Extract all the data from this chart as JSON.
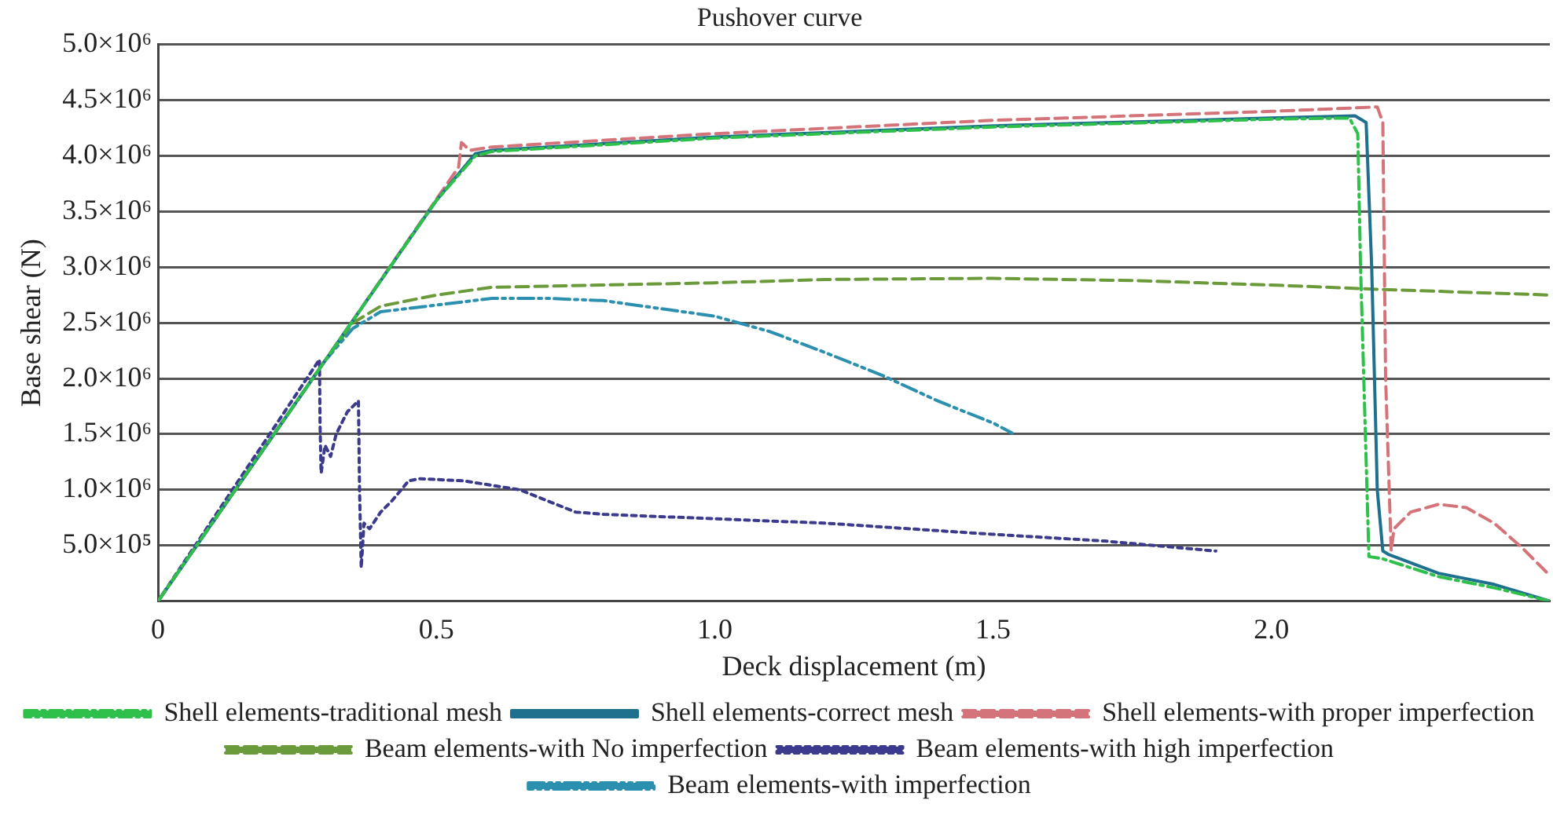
{
  "chart_data": {
    "type": "line",
    "title": "Pushover curve",
    "xlabel": "Deck displacement (m)",
    "ylabel": "Base shear (N)",
    "xlim": [
      0,
      2.5
    ],
    "xticks": [
      0,
      0.5,
      {
        "value": 1,
        "label": "1.0"
      },
      1.5,
      {
        "value": 2,
        "label": "2.0"
      }
    ],
    "ylim": [
      0,
      5000000
    ],
    "yticks": [
      {
        "value": 0,
        "label": null
      },
      {
        "value": 500000,
        "label": "5.0×10⁵"
      },
      {
        "value": 1000000,
        "label": "1.0×10⁶"
      },
      {
        "value": 1500000,
        "label": "1.5×10⁶"
      },
      {
        "value": 2000000,
        "label": "2.0×10⁶"
      },
      {
        "value": 2500000,
        "label": "2.5×10⁶"
      },
      {
        "value": 3000000,
        "label": "3.0×10⁶"
      },
      {
        "value": 3500000,
        "label": "3.5×10⁶"
      },
      {
        "value": 4000000,
        "label": "4.0×10⁶"
      },
      {
        "value": 4500000,
        "label": "4.5×10⁶"
      },
      {
        "value": 5000000,
        "label": "5.0×10⁶"
      }
    ],
    "grid": "y",
    "legend": "bottom",
    "marker": "none",
    "series": [
      {
        "name": "Shell elements-traditional mesh",
        "color": "#2ec04a",
        "line_style": "dashdot",
        "x": [
          0,
          0.3,
          0.5,
          0.57,
          0.6,
          1.0,
          1.5,
          2.0,
          2.14,
          2.155,
          2.16,
          2.175,
          2.2,
          2.3,
          2.4,
          2.5
        ],
        "values": [
          0,
          2160000,
          3600000,
          4000000,
          4040000,
          4160000,
          4260000,
          4330000,
          4340000,
          4200000,
          3000000,
          400000,
          380000,
          220000,
          120000,
          0
        ]
      },
      {
        "name": "Shell elements-correct mesh",
        "color": "#1f6f8f",
        "line_style": "solid",
        "x": [
          0,
          0.3,
          0.5,
          0.57,
          0.6,
          1.0,
          1.5,
          2.0,
          2.15,
          2.17,
          2.18,
          2.19,
          2.2,
          2.21,
          2.3,
          2.4,
          2.5
        ],
        "values": [
          0,
          2160000,
          3600000,
          4020000,
          4050000,
          4170000,
          4270000,
          4340000,
          4360000,
          4300000,
          3000000,
          1000000,
          450000,
          420000,
          250000,
          150000,
          0
        ]
      },
      {
        "name": "Shell elements-with proper imperfection",
        "color": "#d4737a",
        "line_style": "dashed",
        "x": [
          0,
          0.3,
          0.54,
          0.545,
          0.56,
          0.6,
          1.0,
          1.5,
          2.0,
          2.19,
          2.2,
          2.205,
          2.215,
          2.22,
          2.25,
          2.3,
          2.35,
          2.4,
          2.45,
          2.5
        ],
        "values": [
          0,
          2160000,
          3900000,
          4120000,
          4050000,
          4080000,
          4200000,
          4320000,
          4400000,
          4440000,
          4300000,
          2000000,
          450000,
          650000,
          800000,
          870000,
          840000,
          700000,
          480000,
          230000
        ]
      },
      {
        "name": "Beam elements-with No imperfection",
        "color": "#6b9a3a",
        "line_style": "dashed",
        "x": [
          0,
          0.3,
          0.35,
          0.4,
          0.5,
          0.6,
          0.8,
          1.0,
          1.2,
          1.5,
          1.75,
          2.0,
          2.2,
          2.5
        ],
        "values": [
          0,
          2160000,
          2500000,
          2650000,
          2750000,
          2820000,
          2840000,
          2860000,
          2890000,
          2900000,
          2880000,
          2840000,
          2800000,
          2750000
        ]
      },
      {
        "name": "Beam elements-with high imperfection",
        "color": "#3b3a8c",
        "line_style": "dotted",
        "x": [
          0,
          0.29,
          0.291,
          0.293,
          0.3,
          0.31,
          0.32,
          0.34,
          0.36,
          0.362,
          0.365,
          0.37,
          0.38,
          0.4,
          0.42,
          0.45,
          0.47,
          0.55,
          0.65,
          0.7,
          0.75,
          0.8,
          1.0,
          1.2,
          1.5,
          1.7,
          1.9
        ],
        "values": [
          0,
          2170000,
          1600000,
          1150000,
          1400000,
          1300000,
          1500000,
          1700000,
          1800000,
          1000000,
          300000,
          700000,
          650000,
          800000,
          900000,
          1080000,
          1100000,
          1080000,
          1000000,
          900000,
          800000,
          780000,
          740000,
          700000,
          600000,
          540000,
          450000
        ]
      },
      {
        "name": "Beam elements-with imperfection",
        "color": "#2b8fb0",
        "line_style": "dashdotdot",
        "x": [
          0,
          0.3,
          0.35,
          0.4,
          0.5,
          0.6,
          0.7,
          0.8,
          1.0,
          1.1,
          1.2,
          1.3,
          1.4,
          1.5,
          1.534
        ],
        "values": [
          0,
          2160000,
          2450000,
          2600000,
          2660000,
          2720000,
          2720000,
          2700000,
          2560000,
          2420000,
          2230000,
          2030000,
          1800000,
          1600000,
          1510000
        ]
      }
    ]
  }
}
